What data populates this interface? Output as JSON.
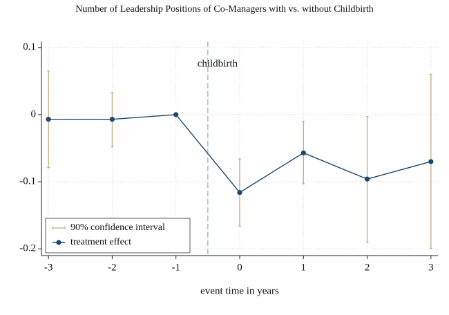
{
  "chart_data": {
    "type": "line",
    "title": "Number of Leadership Positions of Co-Managers with vs. without Childbirth",
    "x_label": "event time in years",
    "x": [
      -3,
      -2,
      -1,
      0,
      1,
      2,
      3
    ],
    "series": [
      {
        "name": "treatment effect",
        "color": "#1a476f",
        "values": [
          -0.007,
          -0.007,
          0,
          -0.116,
          -0.057,
          -0.096,
          -0.07
        ]
      }
    ],
    "confidence_interval": {
      "name": "90% confidence interval",
      "color": "#c2ab7a",
      "lower": [
        -0.079,
        -0.048,
        null,
        -0.166,
        -0.103,
        -0.19,
        -0.199
      ],
      "upper": [
        0.065,
        0.033,
        null,
        -0.066,
        -0.01,
        -0.003,
        0.06
      ]
    },
    "vline": -0.5,
    "annotation": "childbirth",
    "xlim": [
      -3.11,
      3.11
    ],
    "xticks": [
      -3,
      -2,
      -1,
      0,
      1,
      2,
      3
    ],
    "ylim": [
      -0.21,
      0.109
    ],
    "yticks": [
      0.1,
      0,
      -0.1,
      -0.2
    ],
    "grid": true,
    "legend_position": "lower-left"
  }
}
